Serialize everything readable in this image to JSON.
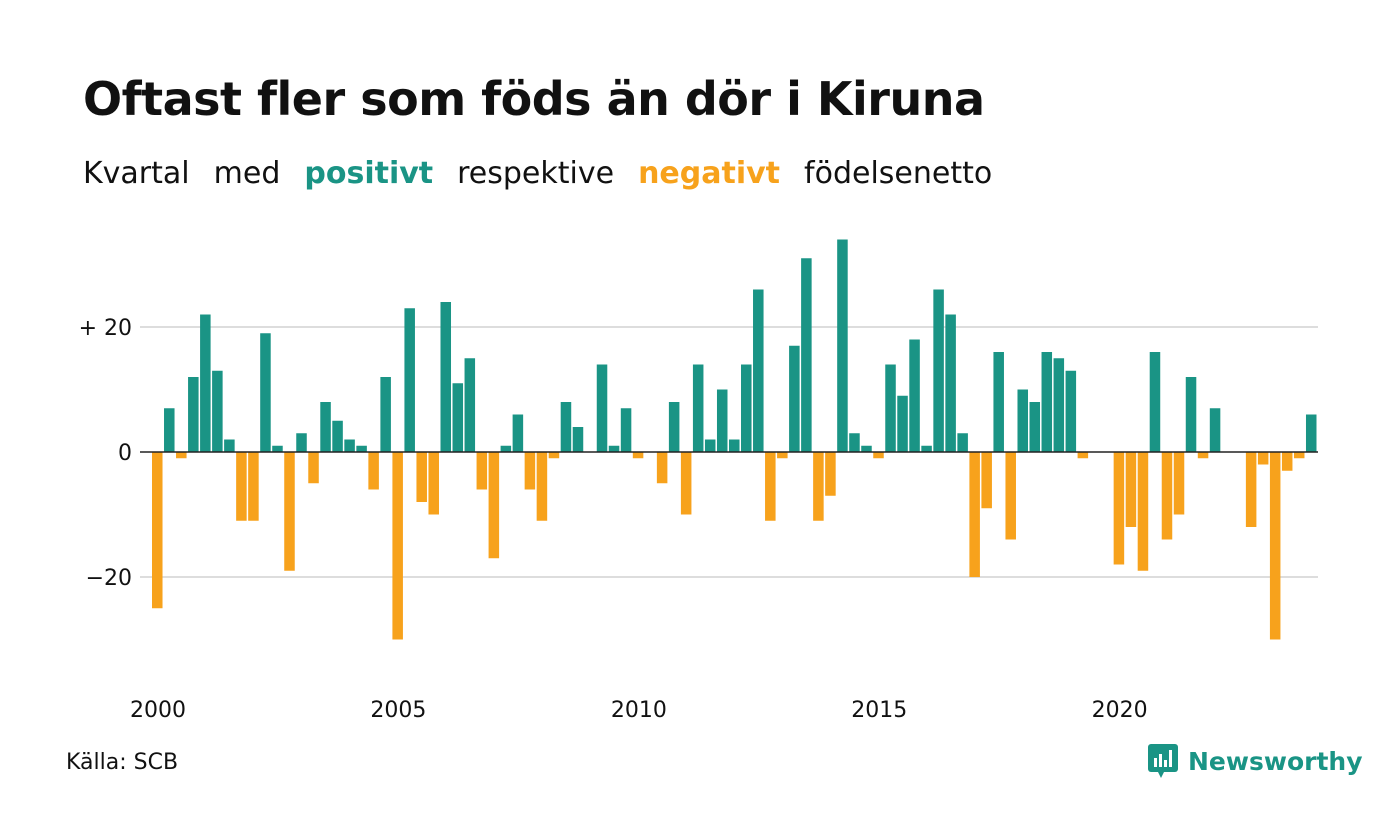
{
  "title": "Oftast fler som föds än dör i Kiruna",
  "subtitle": {
    "part1": "Kvartal",
    "part2": "med",
    "positive": "positivt",
    "part3": "respektive",
    "negative": "negativt",
    "part4": "födelsenetto"
  },
  "source": "Källa: SCB",
  "brand": {
    "name": "Newsworthy",
    "icon": "newsworthy-logo-icon"
  },
  "colors": {
    "positive": "#1a9485",
    "negative": "#f7a21c",
    "grid": "#dddddd",
    "text": "#111111"
  },
  "chart_data": {
    "type": "bar",
    "title": "Oftast fler som föds än dör i Kiruna",
    "xlabel": "",
    "ylabel": "",
    "ylim": [
      -34,
      36
    ],
    "y_ticks": [
      20,
      0,
      -20
    ],
    "y_tick_labels": [
      "+ 20",
      "0",
      "−20"
    ],
    "x_tick_labels": [
      "2000",
      "2005",
      "2010",
      "2015",
      "2020"
    ],
    "grid": true,
    "start": "2000 Q1",
    "frequency": "quarter",
    "values": [
      -25,
      7,
      -1,
      12,
      22,
      13,
      2,
      -11,
      -11,
      19,
      1,
      -19,
      3,
      -5,
      8,
      5,
      2,
      1,
      -6,
      12,
      -30,
      23,
      -8,
      -10,
      24,
      11,
      15,
      -6,
      -17,
      1,
      6,
      -6,
      -11,
      -1,
      8,
      4,
      0,
      14,
      1,
      7,
      -1,
      0,
      -5,
      8,
      -10,
      14,
      2,
      10,
      2,
      14,
      26,
      -11,
      -1,
      17,
      31,
      -11,
      -7,
      34,
      3,
      1,
      -1,
      14,
      9,
      18,
      1,
      26,
      22,
      3,
      -20,
      -9,
      16,
      -14,
      10,
      8,
      16,
      15,
      13,
      -1,
      0,
      0,
      -18,
      -12,
      -19,
      16,
      -14,
      -10,
      12,
      -1,
      7,
      0,
      0,
      -12,
      -2,
      -30,
      -3,
      -1,
      6
    ]
  }
}
